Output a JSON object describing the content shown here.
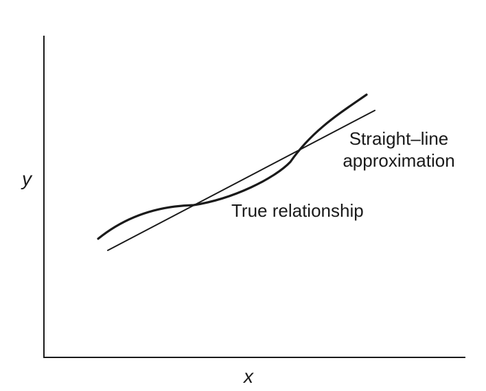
{
  "diagram": {
    "axis_x_label": "x",
    "axis_y_label": "y",
    "annotation_approx_line1": "Straight–line",
    "annotation_approx_line2": "approximation",
    "annotation_true": "True relationship"
  }
}
